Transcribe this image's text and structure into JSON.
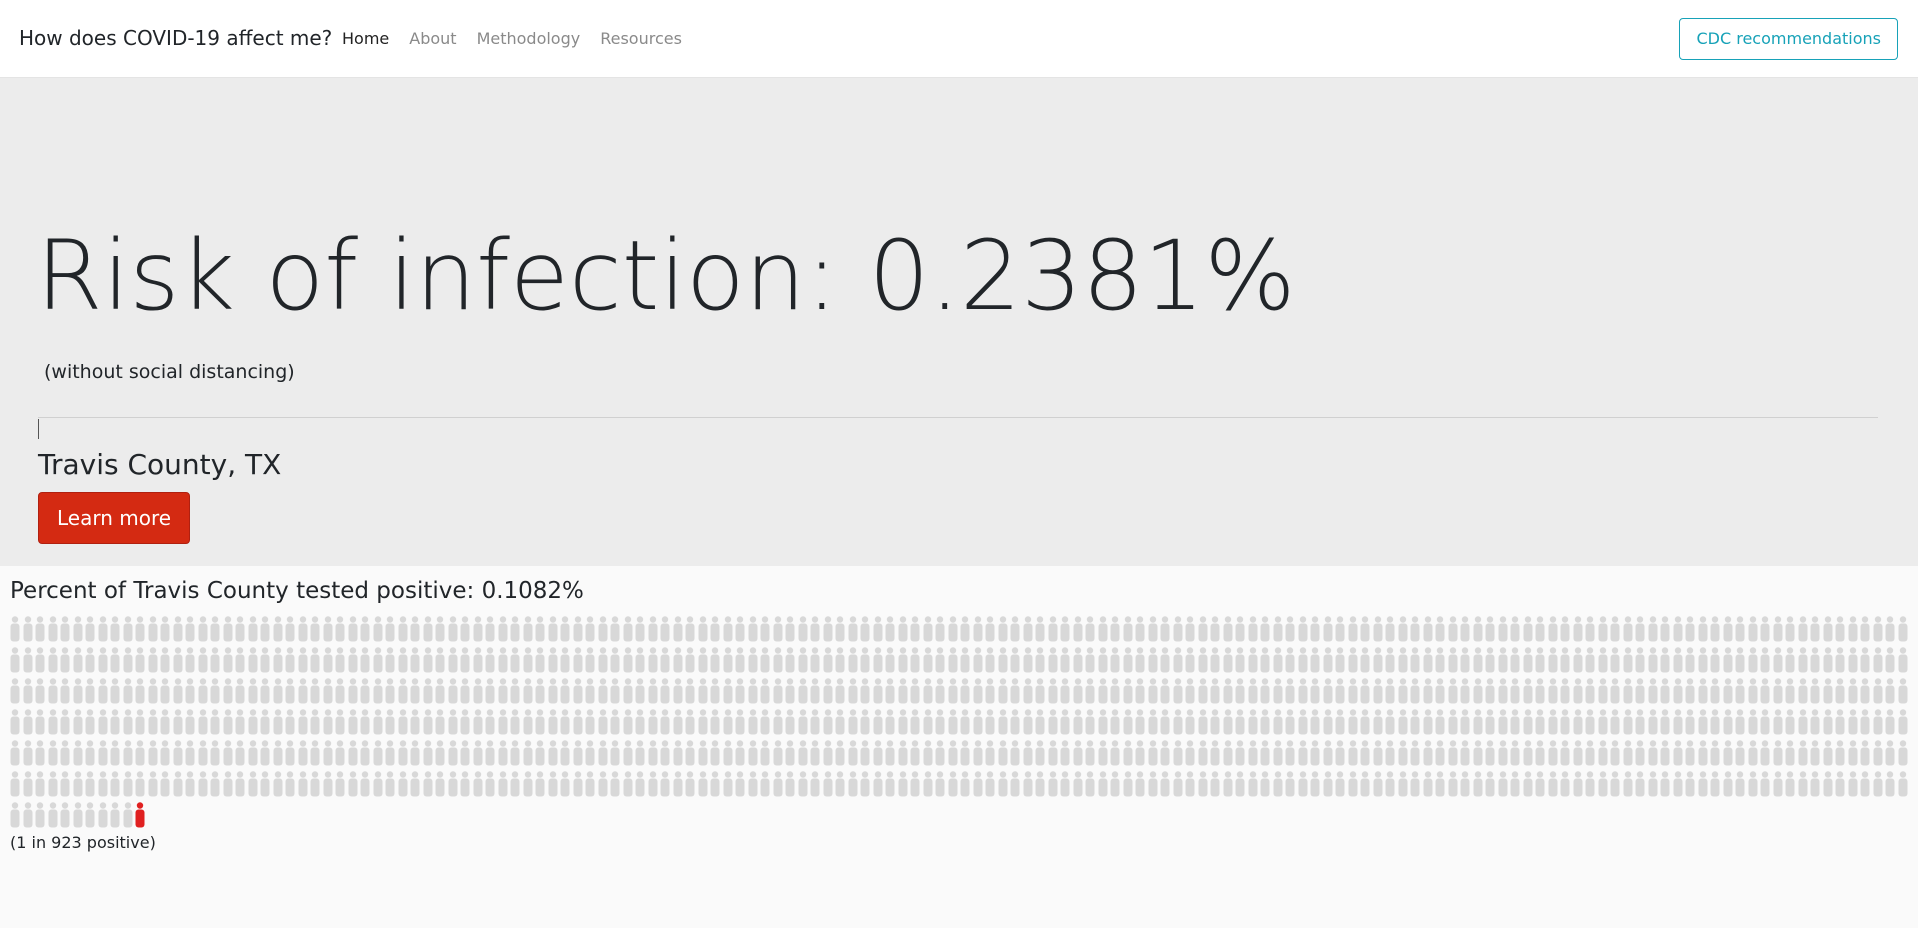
{
  "navbar": {
    "brand": "How does COVID-19 affect me?",
    "links": [
      "Home",
      "About",
      "Methodology",
      "Resources"
    ],
    "button": "CDC recommendations"
  },
  "hero": {
    "title": "Risk of infection: 0.2381%",
    "subtitle": "(without social distancing)",
    "location": "Travis County, TX",
    "button": "Learn more"
  },
  "positive_section": {
    "title": "Percent of Travis County tested positive: 0.1082%",
    "caption": "(1 in 923 positive)"
  }
}
